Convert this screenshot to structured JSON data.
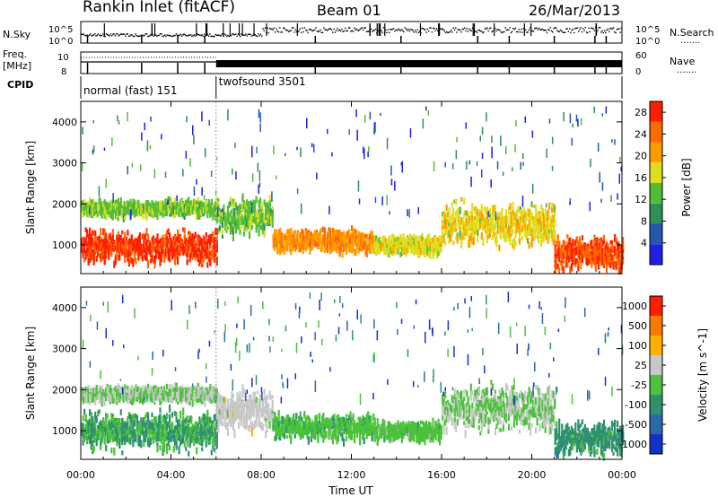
{
  "header": {
    "station": "Rankin Inlet (fitACF)",
    "beam": "Beam 01",
    "date": "26/Mar/2013"
  },
  "strip_labels": {
    "nsky": "N.Sky",
    "freq_line1": "Freq.",
    "freq_line2": "[MHz]",
    "cpid": "CPID",
    "nsearch": "N.Search",
    "nave": "Nave",
    "dots": "......."
  },
  "strip_ticks": {
    "nsky_hi": "10^5",
    "nsky_lo": "10^0",
    "nsearch_hi": "10^5",
    "nsearch_lo": "10^0",
    "freq_hi": "10",
    "freq_lo": "8",
    "nave_hi": "60",
    "nave_lo": "0"
  },
  "cpid_modes": [
    {
      "label": "normal (fast) 151",
      "start_hour": 0,
      "end_hour": 6
    },
    {
      "label": "twofsound 3501",
      "start_hour": 6,
      "end_hour": 24
    }
  ],
  "colors": {
    "power_scale": [
      "#1f1fe6",
      "#2457b0",
      "#2f8f5a",
      "#52bd3a",
      "#dede1e",
      "#ff9c00",
      "#ff6a00",
      "#ff1e00"
    ],
    "velocity_scale": [
      "#1530c8",
      "#2a6aa8",
      "#2f9070",
      "#4cc23c",
      "#c8c8c8",
      "#ffb000",
      "#ff7a00",
      "#ff1e00"
    ]
  },
  "chart_data": [
    {
      "type": "heatmap",
      "title": "",
      "xlabel": "",
      "ylabel": "Slant Range [km]",
      "x_ticks": [
        "00:00",
        "04:00",
        "08:00",
        "12:00",
        "16:00",
        "20:00",
        "00:00"
      ],
      "xlim_hours": [
        0,
        24
      ],
      "y_ticks": [
        "1000",
        "2000",
        "3000",
        "4000"
      ],
      "ylim_km": [
        300,
        4500
      ],
      "colorbar": {
        "label": "Power [dB]",
        "ticks": [
          "4",
          "8",
          "12",
          "16",
          "20",
          "24",
          "28"
        ],
        "range": [
          0,
          30
        ]
      },
      "bands": [
        {
          "x": [
            0,
            6
          ],
          "center_km": 950,
          "width_km": 500,
          "value": 27
        },
        {
          "x": [
            0,
            6
          ],
          "center_km": 1900,
          "width_km": 250,
          "value": 14
        },
        {
          "x": [
            6,
            8.5
          ],
          "center_km": 1700,
          "width_km": 600,
          "value": 14
        },
        {
          "x": [
            8.5,
            13
          ],
          "center_km": 1100,
          "width_km": 350,
          "value": 22
        },
        {
          "x": [
            13,
            16
          ],
          "center_km": 1000,
          "width_km": 300,
          "value": 17
        },
        {
          "x": [
            16,
            21
          ],
          "center_km": 1500,
          "width_km": 650,
          "value": 18
        },
        {
          "x": [
            21,
            24
          ],
          "center_km": 800,
          "width_km": 500,
          "value": 26
        }
      ]
    },
    {
      "type": "heatmap",
      "title": "",
      "xlabel": "Time UT",
      "ylabel": "Slant Range [km]",
      "x_ticks": [
        "00:00",
        "04:00",
        "08:00",
        "12:00",
        "16:00",
        "20:00",
        "00:00"
      ],
      "xlim_hours": [
        0,
        24
      ],
      "y_ticks": [
        "1000",
        "2000",
        "3000",
        "4000"
      ],
      "ylim_km": [
        300,
        4500
      ],
      "colorbar": {
        "label": "Velocity [m s^-1]",
        "ticks": [
          "1000",
          "500",
          "100",
          "25",
          "-25",
          "-100",
          "-500",
          "-1000"
        ],
        "range": [
          -1200,
          1200
        ]
      },
      "bands": [
        {
          "x": [
            0,
            6
          ],
          "center_km": 1000,
          "width_km": 600,
          "value": -300
        },
        {
          "x": [
            0,
            6
          ],
          "center_km": 1900,
          "width_km": 250,
          "value": 0
        },
        {
          "x": [
            6,
            8.5
          ],
          "center_km": 1500,
          "width_km": 600,
          "value": 150
        },
        {
          "x": [
            8.5,
            13
          ],
          "center_km": 1100,
          "width_km": 400,
          "value": -200
        },
        {
          "x": [
            13,
            16
          ],
          "center_km": 1000,
          "width_km": 300,
          "value": -150
        },
        {
          "x": [
            16,
            21
          ],
          "center_km": 1550,
          "width_km": 700,
          "value": 0
        },
        {
          "x": [
            21,
            24
          ],
          "center_km": 800,
          "width_km": 500,
          "value": -400
        }
      ]
    }
  ]
}
